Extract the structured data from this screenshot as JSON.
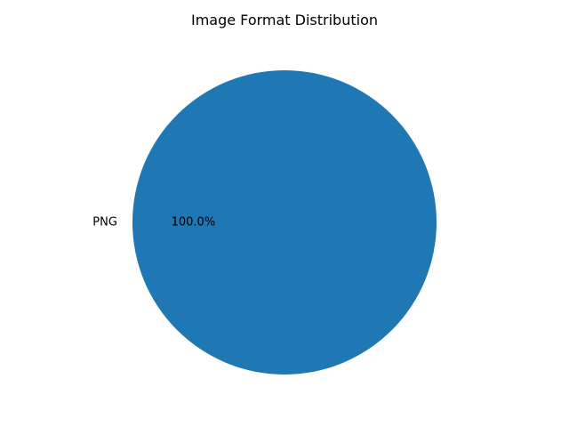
{
  "chart_data": {
    "type": "pie",
    "title": "Image Format Distribution",
    "labels": [
      "PNG"
    ],
    "values": [
      100
    ],
    "percent_labels": [
      "100.0%"
    ],
    "colors": [
      "#1f77b4"
    ]
  }
}
